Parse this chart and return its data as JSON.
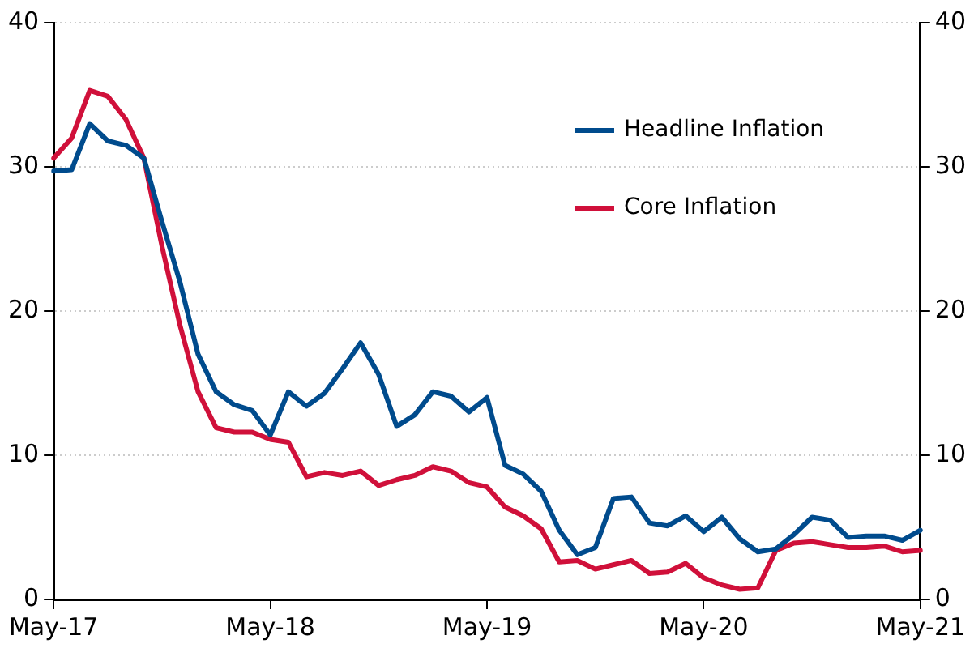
{
  "chart_data": {
    "type": "line",
    "categories": [
      "May-17",
      null,
      null,
      null,
      null,
      null,
      null,
      null,
      null,
      null,
      null,
      null,
      "May-18",
      null,
      null,
      null,
      null,
      null,
      null,
      null,
      null,
      null,
      null,
      null,
      "May-19",
      null,
      null,
      null,
      null,
      null,
      null,
      null,
      null,
      null,
      null,
      null,
      "May-20",
      null,
      null,
      null,
      null,
      null,
      null,
      null,
      null,
      null,
      null,
      null,
      "May-21"
    ],
    "series": [
      {
        "name": "Headline Inflation",
        "color": "#004b8d",
        "values": [
          29.7,
          29.8,
          33.0,
          31.8,
          31.5,
          30.6,
          26.2,
          22.0,
          17.0,
          14.4,
          13.5,
          13.1,
          11.4,
          14.4,
          13.4,
          14.3,
          16.0,
          17.8,
          15.6,
          12.0,
          12.8,
          14.4,
          14.1,
          13.0,
          14.0,
          9.3,
          8.7,
          7.5,
          4.8,
          3.1,
          3.6,
          7.0,
          7.1,
          5.3,
          5.1,
          5.8,
          4.7,
          5.7,
          4.2,
          3.3,
          3.5,
          4.5,
          5.7,
          5.5,
          4.3,
          4.4,
          4.4,
          4.1,
          4.8
        ]
      },
      {
        "name": "Core Inflation",
        "color": "#d0103a",
        "values": [
          30.6,
          32.0,
          35.3,
          34.9,
          33.3,
          30.6,
          24.5,
          19.0,
          14.4,
          11.9,
          11.6,
          11.6,
          11.1,
          10.9,
          8.5,
          8.8,
          8.6,
          8.9,
          7.9,
          8.3,
          8.6,
          9.2,
          8.9,
          8.1,
          7.8,
          6.4,
          5.8,
          4.9,
          2.6,
          2.7,
          2.1,
          2.4,
          2.7,
          1.8,
          1.9,
          2.5,
          1.5,
          1.0,
          0.7,
          0.8,
          3.4,
          3.9,
          4.0,
          3.8,
          3.6,
          3.6,
          3.7,
          3.3,
          3.4
        ]
      }
    ],
    "ylim": [
      0,
      40
    ],
    "yticks": [
      0,
      10,
      20,
      30,
      40
    ],
    "y2lim": [
      0,
      40
    ],
    "y2ticks": [
      0,
      10,
      20,
      30,
      40
    ],
    "grid": "y",
    "legend": "top right",
    "marker": "none",
    "line_style": "solid"
  }
}
